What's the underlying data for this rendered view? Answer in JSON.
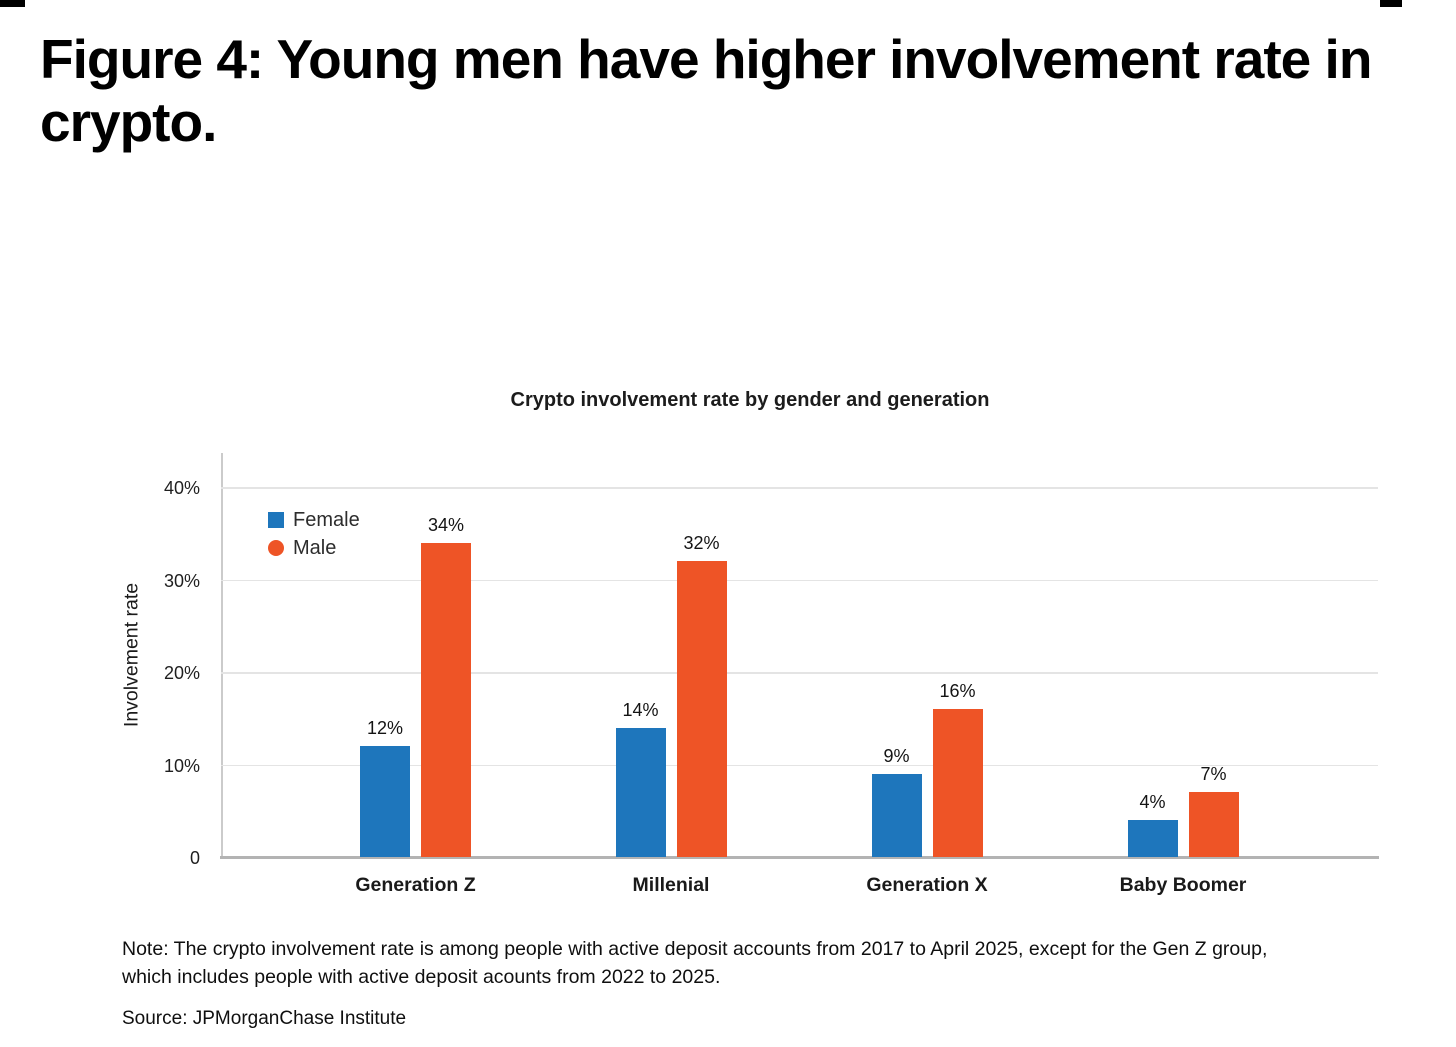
{
  "figure": {
    "title_line1": "Figure 4: Young men have higher involvement rate in",
    "title_line2": "crypto."
  },
  "chart_data": {
    "type": "bar",
    "title": "Crypto involvement rate by gender and generation",
    "categories": [
      "Generation Z",
      "Millenial",
      "Generation X",
      "Baby Boomer"
    ],
    "series": [
      {
        "name": "Female",
        "marker": "square",
        "color": "#1E76BC",
        "values": [
          12,
          14,
          9,
          4
        ],
        "data_labels": [
          "12%",
          "14%",
          "9%",
          "4%"
        ]
      },
      {
        "name": "Male",
        "marker": "circle",
        "color": "#EE5426",
        "values": [
          34,
          32,
          16,
          7
        ],
        "data_labels": [
          "34%",
          "32%",
          "16%",
          "7%"
        ]
      }
    ],
    "y_axis": {
      "title": "Involvement rate",
      "range": [
        0,
        40
      ],
      "ticks": [
        {
          "label": "40%",
          "value": 40
        },
        {
          "label": "30%",
          "value": 30
        },
        {
          "label": "20%",
          "value": 20
        },
        {
          "label": "10%",
          "value": 10
        },
        {
          "label": "0",
          "value": 0
        }
      ]
    },
    "legend_position": "top-left-inside",
    "grid": "horizontal"
  },
  "footer": {
    "note_line1": "Note: The crypto involvement rate is among people with active deposit accounts from 2017 to April 2025, except for the Gen Z group,",
    "note_line2": "which includes people with active deposit acounts from 2022 to 2025.",
    "source": "Source: JPMorganChase Institute"
  }
}
